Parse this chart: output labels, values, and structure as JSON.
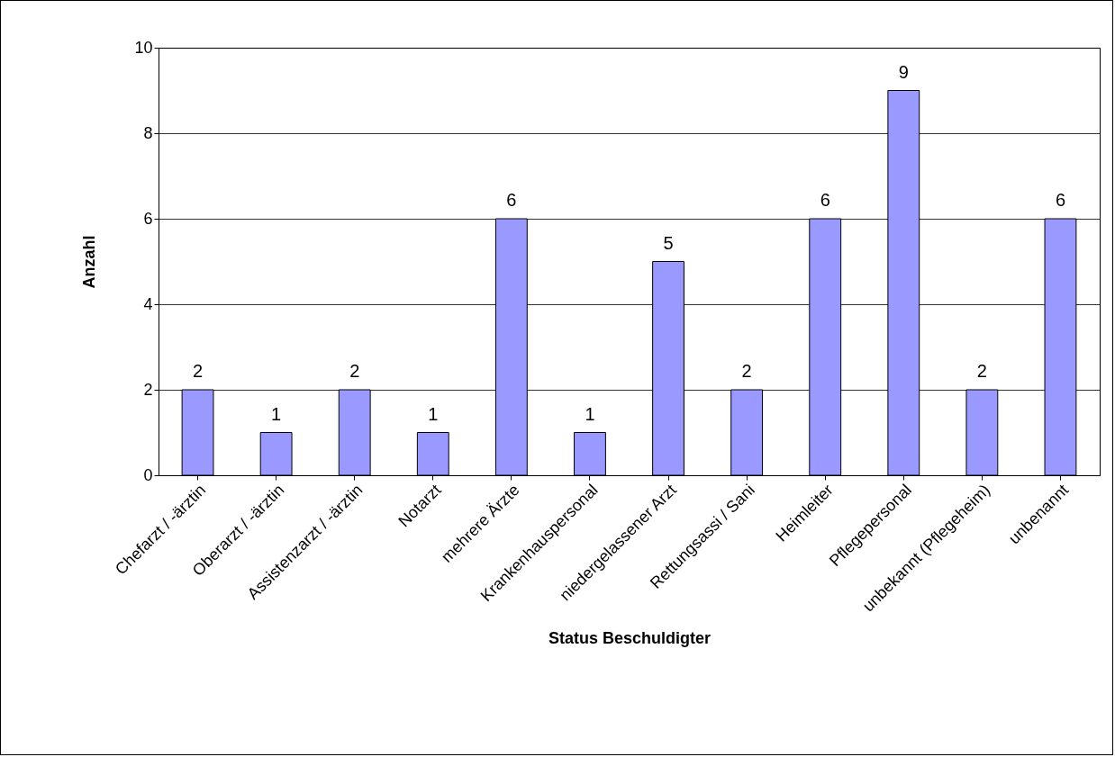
{
  "chart_data": {
    "type": "bar",
    "xlabel": "Status Beschuldigter",
    "ylabel": "Anzahl",
    "categories": [
      "Chefarzt / -ärztin",
      "Oberarzt / -ärztin",
      "Assistenzarzt / -ärztin",
      "Notarzt",
      "mehrere Ärzte",
      "Krankenhauspersonal",
      "niedergelassener Arzt",
      "Rettungsassi / Sani",
      "Heimleiter",
      "Pflegepersonal",
      "unbekannt (Pflegeheim)",
      "unbenannt"
    ],
    "values": [
      2,
      1,
      2,
      1,
      6,
      1,
      5,
      2,
      6,
      9,
      2,
      6
    ],
    "color": "#9999ff",
    "ylim": [
      0,
      10
    ],
    "yticks": [
      0,
      2,
      4,
      6,
      8,
      10
    ],
    "grid": "y",
    "data_labels": true
  }
}
